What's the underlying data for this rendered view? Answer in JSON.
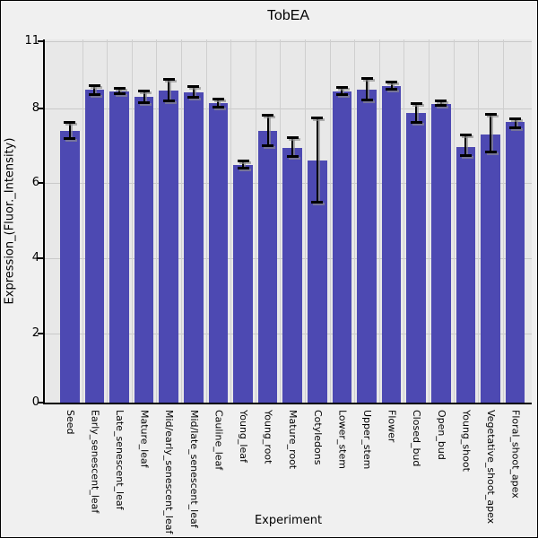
{
  "title": "TobEA",
  "y_axis": {
    "label": "Expression_(Fluor._Intensity)",
    "tick_labels": [
      "0",
      "2",
      "4",
      "6",
      "8",
      "11"
    ]
  },
  "x_axis": {
    "label": "Experiment"
  },
  "colors": {
    "bar": "#4d49b2",
    "panel_background": "#e8e8e8",
    "figure_background": "#f0f0f0",
    "gridline": "#c9c9c9",
    "axis": "#000000",
    "error_bar": "#000000"
  },
  "chart_data": {
    "type": "bar",
    "title": "TobEA",
    "xlabel": "Experiment",
    "ylabel": "Expression_(Fluor._Intensity)",
    "ylim": [
      0,
      11
    ],
    "yticks": [
      0,
      2,
      4,
      6,
      8,
      11
    ],
    "grid": true,
    "legend": "none",
    "error_bars": true,
    "categories": [
      "Seed",
      "Early_senescent_leaf",
      "Late_senescent_leaf",
      "Mature_leaf",
      "Mid/early_senescent_leaf",
      "Mid/late_senescent_leaf",
      "Cauline_leaf",
      "Young_leaf",
      "Young_root",
      "Mature_root",
      "Cotyledons",
      "Lower_stem",
      "Upper_stem",
      "Flower",
      "Closed_bud",
      "Open_bud",
      "Young_shoot",
      "Vegetative_shoot_apex",
      "Floral_shoot_apex"
    ],
    "values": [
      7.4,
      8.83,
      8.75,
      8.51,
      8.77,
      8.71,
      8.21,
      6.48,
      7.4,
      6.93,
      6.59,
      8.73,
      8.84,
      8.98,
      7.88,
      8.2,
      6.97,
      7.3,
      7.62
    ],
    "error_high": [
      7.62,
      9.01,
      8.9,
      8.77,
      9.29,
      8.95,
      8.4,
      6.59,
      7.82,
      7.22,
      7.74,
      8.93,
      9.31,
      9.18,
      8.19,
      8.33,
      7.29,
      7.83,
      7.71
    ],
    "error_low": [
      7.19,
      8.61,
      8.64,
      8.25,
      8.32,
      8.49,
      8.05,
      6.39,
      7.0,
      6.71,
      5.49,
      8.59,
      8.37,
      8.83,
      7.62,
      8.11,
      6.73,
      6.83,
      7.48
    ]
  }
}
